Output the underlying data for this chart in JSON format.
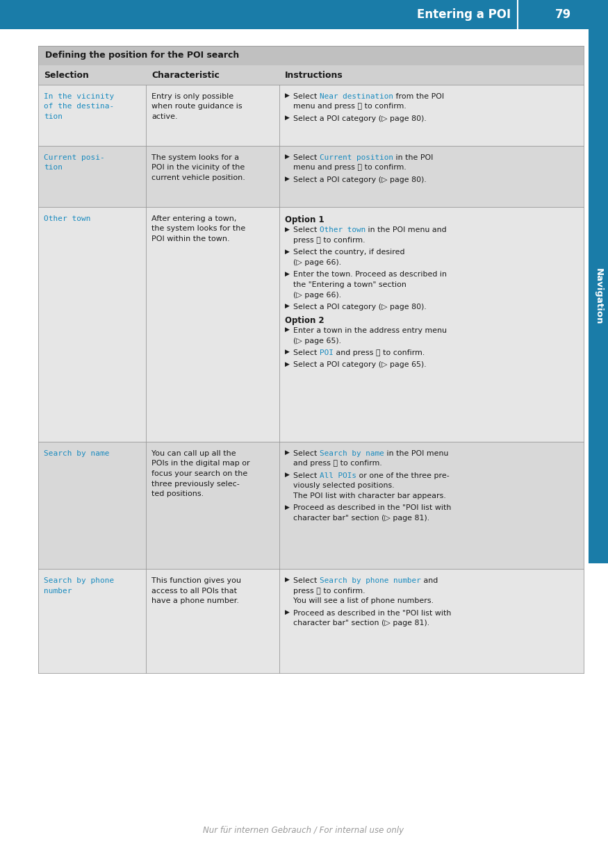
{
  "page_title": "Entering a POI",
  "page_number": "79",
  "header_bg": "#1a7ca8",
  "header_text_color": "#ffffff",
  "table_title": "Defining the position for the POI search",
  "table_title_bg": "#c0c0c0",
  "col_header_bg": "#d0d0d0",
  "col_headers": [
    "Selection",
    "Characteristic",
    "Instructions"
  ],
  "row_bg_light": "#e6e6e6",
  "row_bg_dark": "#d8d8d8",
  "blue_text": "#1a8bbf",
  "black_text": "#1a1a1a",
  "sidebar_bg": "#1a7ca8",
  "sidebar_text": "Navigation",
  "sidebar_text_color": "#ffffff",
  "footer_text": "Nur für internen Gebrauch / For internal use only",
  "confirm_symbol": "ⓐ",
  "arrow_symbol": "▶",
  "page_ref_arrow": "▷"
}
